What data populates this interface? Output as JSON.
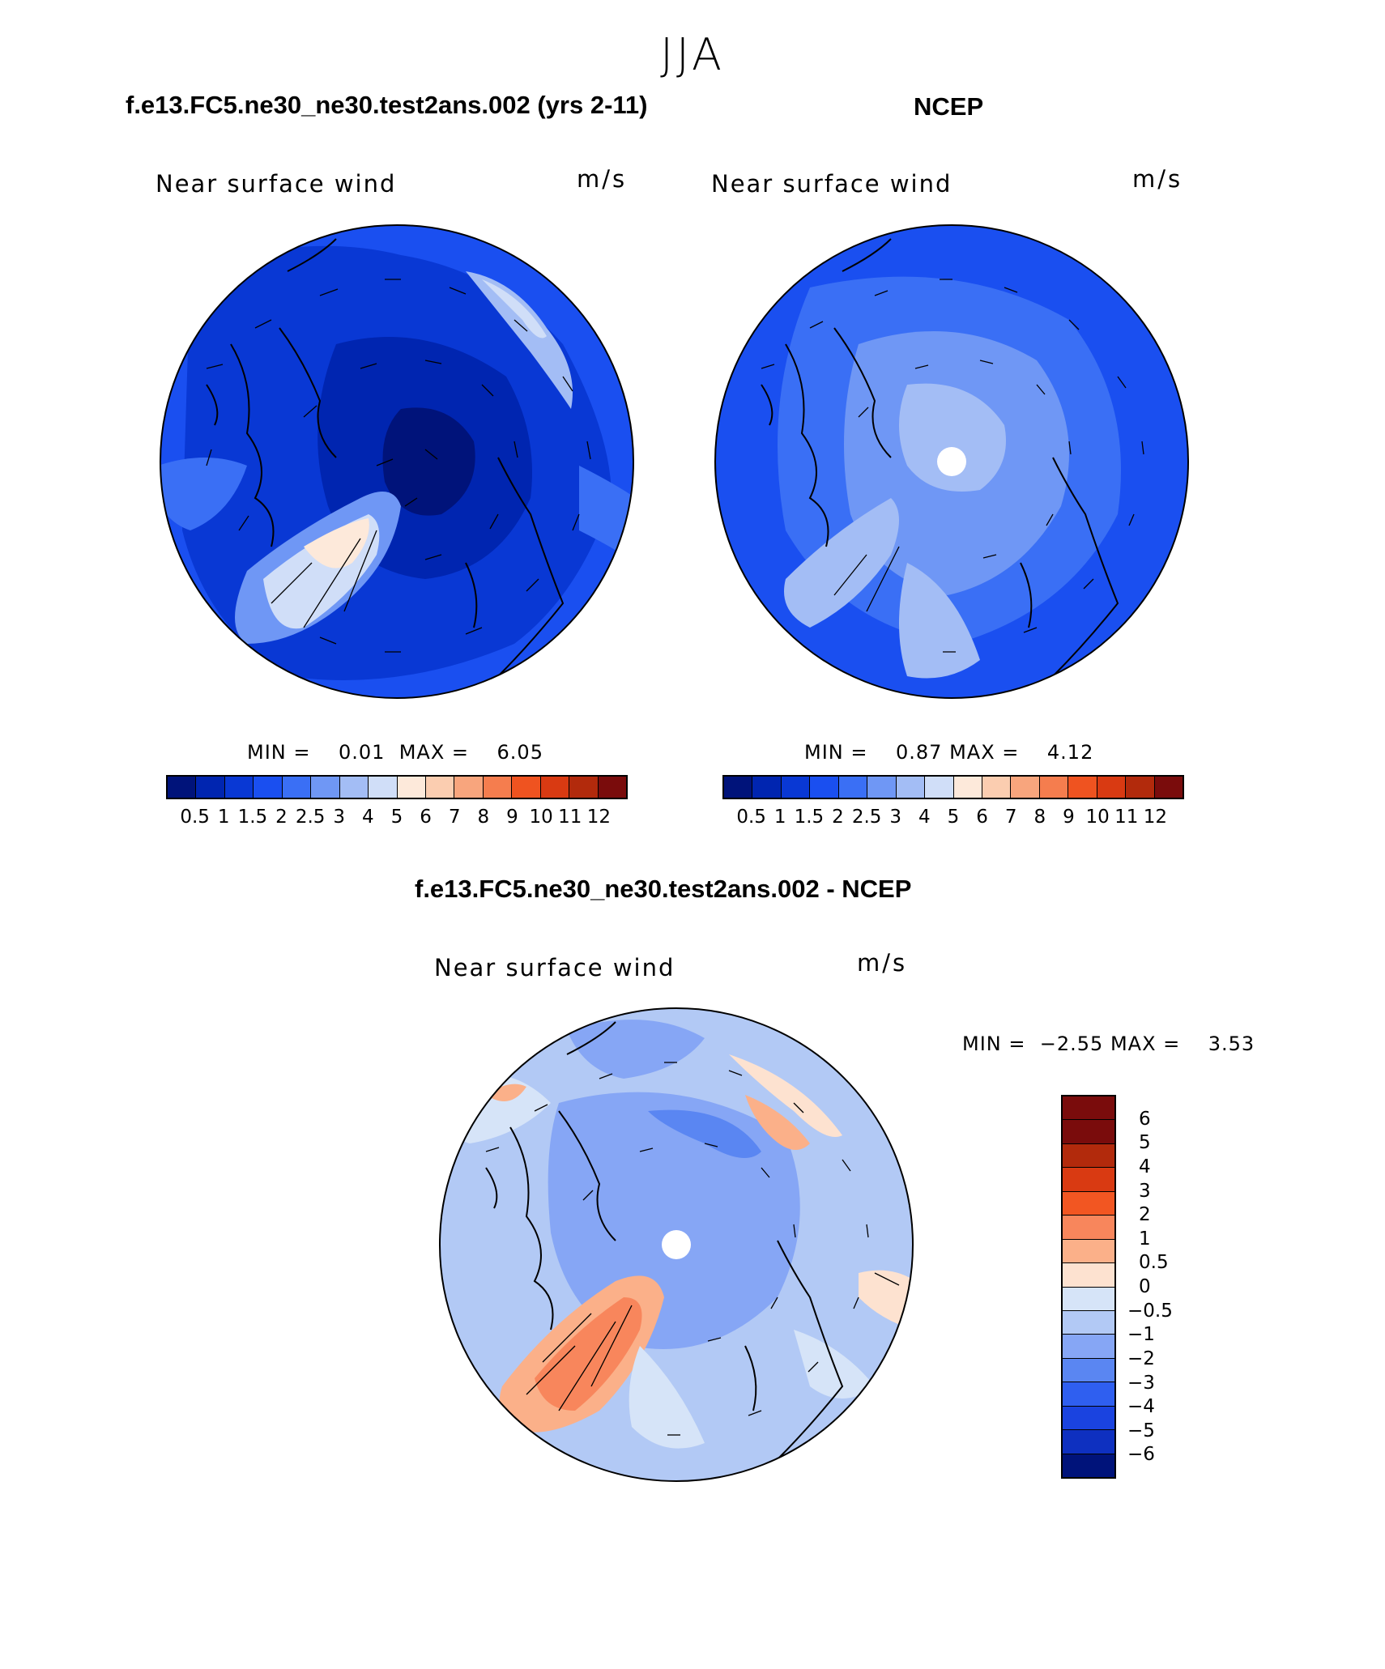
{
  "figure": {
    "season": "JJA"
  },
  "panels": [
    {
      "id": "model",
      "title": "f.e13.FC5.ne30_ne30.test2ans.002 (yrs 2-11)",
      "variable": "Near surface wind",
      "units": "m/s",
      "min_label": "MIN =",
      "min": "0.01",
      "max_label": "MAX =",
      "max": "6.05"
    },
    {
      "id": "obs",
      "title": "NCEP",
      "variable": "Near surface wind",
      "units": "m/s",
      "min_label": "MIN =",
      "min": "0.87",
      "max_label": "MAX =",
      "max": "4.12"
    },
    {
      "id": "diff",
      "title": "f.e13.FC5.ne30_ne30.test2ans.002 - NCEP",
      "variable": "Near surface wind",
      "units": "m/s",
      "min_label": "MIN =",
      "min": "−2.55",
      "max_label": "MAX =",
      "max": "3.53"
    }
  ],
  "colorbars": {
    "abs": {
      "colors": [
        "#00137a",
        "#0025b0",
        "#0938d4",
        "#1a4ff0",
        "#3a6ff5",
        "#6f97f5",
        "#a3bdf5",
        "#d0def8",
        "#fde9da",
        "#fbcdb0",
        "#f8a57d",
        "#f57d4e",
        "#ef5320",
        "#d93a12",
        "#b22a0c",
        "#7a0c0c"
      ],
      "ticks": [
        "0.5",
        "1",
        "1.5",
        "2",
        "2.5",
        "3",
        "4",
        "5",
        "6",
        "7",
        "8",
        "9",
        "10",
        "11",
        "12"
      ]
    },
    "diff": {
      "colors": [
        "#7a0c0c",
        "#b22a0c",
        "#d93a12",
        "#f25622",
        "#f8865c",
        "#fbb089",
        "#fde2d0",
        "#d6e4f8",
        "#b2c9f5",
        "#86a6f5",
        "#5a86f2",
        "#2f5ff0",
        "#1a43e0",
        "#0e30c0",
        "#00137a"
      ],
      "ticks": [
        "6",
        "5",
        "4",
        "3",
        "2",
        "1",
        "0.5",
        "0",
        "−0.5",
        "−1",
        "−2",
        "−3",
        "−4",
        "−5",
        "−6"
      ]
    }
  },
  "chart_data": [
    {
      "type": "heatmap",
      "title": "f.e13.FC5.ne30_ne30.test2ans.002 (yrs 2-11)",
      "projection": "north polar stereographic",
      "variable": "Near surface wind",
      "units": "m/s",
      "min": 0.01,
      "max": 6.05,
      "contour_levels": [
        0.5,
        1,
        1.5,
        2,
        2.5,
        3,
        4,
        5,
        6,
        7,
        8,
        9,
        10,
        11,
        12
      ],
      "overlay": "wind vectors"
    },
    {
      "type": "heatmap",
      "title": "NCEP",
      "projection": "north polar stereographic",
      "variable": "Near surface wind",
      "units": "m/s",
      "min": 0.87,
      "max": 4.12,
      "contour_levels": [
        0.5,
        1,
        1.5,
        2,
        2.5,
        3,
        4,
        5,
        6,
        7,
        8,
        9,
        10,
        11,
        12
      ],
      "overlay": "wind vectors"
    },
    {
      "type": "heatmap",
      "title": "f.e13.FC5.ne30_ne30.test2ans.002 - NCEP",
      "projection": "north polar stereographic",
      "variable": "Near surface wind",
      "units": "m/s",
      "min": -2.55,
      "max": 3.53,
      "contour_levels": [
        -6,
        -5,
        -4,
        -3,
        -2,
        -1,
        -0.5,
        0,
        0.5,
        1,
        2,
        3,
        4,
        5,
        6
      ],
      "overlay": "wind vectors"
    }
  ]
}
